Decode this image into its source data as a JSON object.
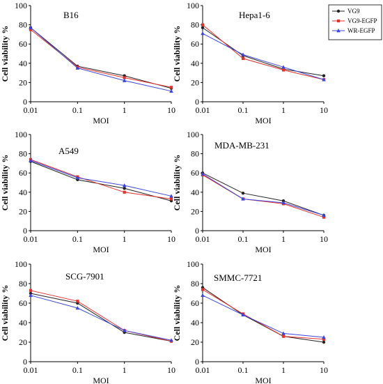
{
  "legend": {
    "placement": "top-right",
    "entries": [
      {
        "name": "VG9",
        "color": "#222222",
        "marker": "circle"
      },
      {
        "name": "VG9-EGFP",
        "color": "#e8302a",
        "marker": "square"
      },
      {
        "name": "WR-EGFP",
        "color": "#3a46e0",
        "marker": "triangle"
      }
    ]
  },
  "chart_data": [
    {
      "type": "line",
      "label": "B16",
      "xlabel": "MOI",
      "ylabel": "Cell viability %",
      "x": [
        0.01,
        0.1,
        1,
        10
      ],
      "x_tick_labels": [
        "0.01",
        "0.1",
        "1",
        "10"
      ],
      "x_scale": "log",
      "ylim": [
        0,
        100
      ],
      "y_ticks": [
        0,
        20,
        40,
        60,
        80,
        100
      ],
      "grid": false,
      "series": [
        {
          "name": "VG9",
          "values": [
            77,
            37,
            27,
            14
          ]
        },
        {
          "name": "VG9-EGFP",
          "values": [
            75,
            36,
            25,
            15
          ]
        },
        {
          "name": "WR-EGFP",
          "values": [
            77,
            35,
            22,
            11
          ]
        }
      ]
    },
    {
      "type": "line",
      "label": "Hepa1-6",
      "xlabel": "MOI",
      "ylabel": "Cell viability %",
      "x": [
        0.01,
        0.1,
        1,
        10
      ],
      "x_tick_labels": [
        "0.01",
        "0.1",
        "1",
        "10"
      ],
      "x_scale": "log",
      "ylim": [
        0,
        100
      ],
      "y_ticks": [
        0,
        20,
        40,
        60,
        80,
        100
      ],
      "grid": false,
      "series": [
        {
          "name": "VG9",
          "values": [
            77,
            48,
            34,
            27
          ]
        },
        {
          "name": "VG9-EGFP",
          "values": [
            80,
            45,
            33,
            23
          ]
        },
        {
          "name": "WR-EGFP",
          "values": [
            71,
            49,
            36,
            23
          ]
        }
      ]
    },
    {
      "type": "line",
      "label": "A549",
      "xlabel": "MOI",
      "ylabel": "Cell viability %",
      "x": [
        0.01,
        0.1,
        1,
        10
      ],
      "x_tick_labels": [
        "0.01",
        "0.1",
        "1",
        "10"
      ],
      "x_scale": "log",
      "ylim": [
        0,
        100
      ],
      "y_ticks": [
        0,
        20,
        40,
        60,
        80,
        100
      ],
      "grid": false,
      "series": [
        {
          "name": "VG9",
          "values": [
            72,
            53,
            44,
            31
          ]
        },
        {
          "name": "VG9-EGFP",
          "values": [
            74,
            56,
            40,
            33
          ]
        },
        {
          "name": "WR-EGFP",
          "values": [
            73,
            55,
            47,
            36
          ]
        }
      ]
    },
    {
      "type": "line",
      "label": "MDA-MB-231",
      "xlabel": "MOI",
      "ylabel": "Cell viability %",
      "x": [
        0.01,
        0.1,
        1,
        10
      ],
      "x_tick_labels": [
        "0.01",
        "0.1",
        "1",
        "10"
      ],
      "x_scale": "log",
      "ylim": [
        0,
        100
      ],
      "y_ticks": [
        0,
        20,
        40,
        60,
        80,
        100
      ],
      "grid": false,
      "series": [
        {
          "name": "VG9",
          "values": [
            60,
            39,
            31,
            16
          ]
        },
        {
          "name": "VG9-EGFP",
          "values": [
            58,
            33,
            28,
            14
          ]
        },
        {
          "name": "WR-EGFP",
          "values": [
            59,
            33,
            29,
            16
          ]
        }
      ]
    },
    {
      "type": "line",
      "label": "SCG-7901",
      "xlabel": "MOI",
      "ylabel": "Cell viability %",
      "x": [
        0.01,
        0.1,
        1,
        10
      ],
      "x_tick_labels": [
        "0.01",
        "0.1",
        "1",
        "10"
      ],
      "x_scale": "log",
      "ylim": [
        0,
        100
      ],
      "y_ticks": [
        0,
        20,
        40,
        60,
        80,
        100
      ],
      "grid": false,
      "series": [
        {
          "name": "VG9",
          "values": [
            70,
            60,
            30,
            21
          ]
        },
        {
          "name": "VG9-EGFP",
          "values": [
            73,
            62,
            32,
            21
          ]
        },
        {
          "name": "WR-EGFP",
          "values": [
            68,
            55,
            32,
            22
          ]
        }
      ]
    },
    {
      "type": "line",
      "label": "SMMC-7721",
      "xlabel": "MOI",
      "ylabel": "Cell viability %",
      "x": [
        0.01,
        0.1,
        1,
        10
      ],
      "x_tick_labels": [
        "0.01",
        "0.1",
        "1",
        "10"
      ],
      "x_scale": "log",
      "ylim": [
        0,
        100
      ],
      "y_ticks": [
        0,
        20,
        40,
        60,
        80,
        100
      ],
      "grid": false,
      "series": [
        {
          "name": "VG9",
          "values": [
            76,
            48,
            26,
            20
          ]
        },
        {
          "name": "VG9-EGFP",
          "values": [
            74,
            49,
            26,
            23
          ]
        },
        {
          "name": "WR-EGFP",
          "values": [
            68,
            48,
            29,
            25
          ]
        }
      ]
    }
  ]
}
